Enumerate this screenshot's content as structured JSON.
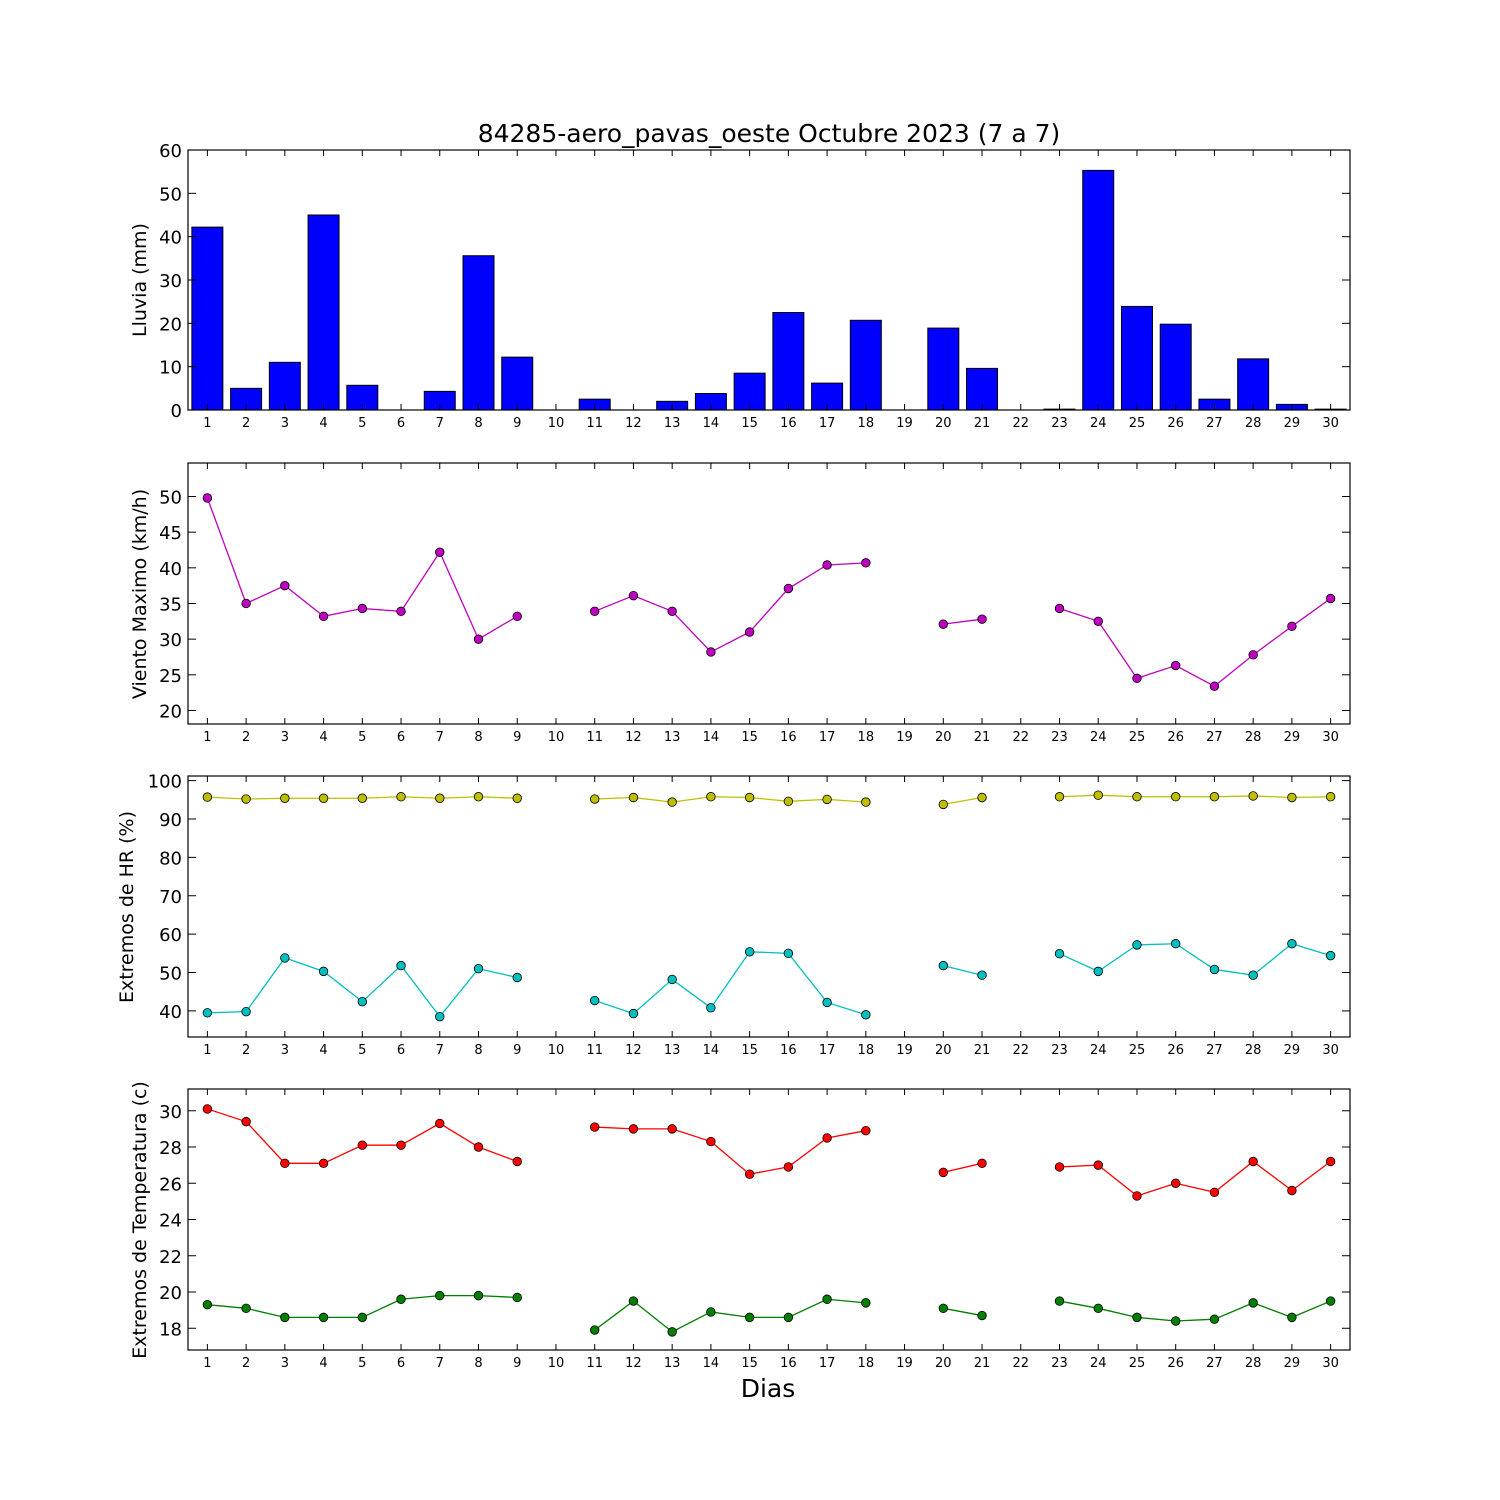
{
  "title": "84285-aero_pavas_oeste Octubre 2023  (7 a 7)",
  "xlabel": "Dias",
  "chart_data": [
    {
      "type": "bar",
      "ylabel": "Lluvia (mm)",
      "x": [
        1,
        2,
        3,
        4,
        5,
        6,
        7,
        8,
        9,
        10,
        11,
        12,
        13,
        14,
        15,
        16,
        17,
        18,
        19,
        20,
        21,
        22,
        23,
        24,
        25,
        26,
        27,
        28,
        29,
        30
      ],
      "ylim": [
        0,
        60
      ],
      "yticks": [
        0,
        10,
        20,
        30,
        40,
        50,
        60
      ],
      "series": [
        {
          "color": "#0000ff",
          "values": [
            42.2,
            5.0,
            11.0,
            45.0,
            5.7,
            0.0,
            4.3,
            35.6,
            12.2,
            0.0,
            2.5,
            0.0,
            2.0,
            3.8,
            8.5,
            22.5,
            6.2,
            20.7,
            0.0,
            18.9,
            9.6,
            0.0,
            0.2,
            55.3,
            23.9,
            19.8,
            2.5,
            11.8,
            1.3,
            0.2
          ]
        }
      ]
    },
    {
      "type": "line",
      "ylabel": "Viento Maximo (km/h)",
      "x": [
        1,
        2,
        3,
        4,
        5,
        6,
        7,
        8,
        9,
        10,
        11,
        12,
        13,
        14,
        15,
        16,
        17,
        18,
        19,
        20,
        21,
        22,
        23,
        24,
        25,
        26,
        27,
        28,
        29,
        30
      ],
      "ylim": [
        18.1,
        54.7
      ],
      "yticks": [
        20,
        25,
        30,
        35,
        40,
        45,
        50
      ],
      "series": [
        {
          "color": "#bf00bf",
          "values": [
            49.8,
            35.0,
            37.5,
            33.2,
            34.3,
            33.9,
            42.2,
            30.0,
            33.2,
            null,
            33.9,
            36.1,
            33.9,
            28.2,
            31.0,
            37.1,
            40.4,
            40.7,
            null,
            32.1,
            32.8,
            null,
            34.3,
            32.5,
            24.5,
            26.3,
            23.4,
            27.8,
            31.8,
            35.7
          ]
        }
      ]
    },
    {
      "type": "line",
      "ylabel": "Extremos de HR (%)",
      "x": [
        1,
        2,
        3,
        4,
        5,
        6,
        7,
        8,
        9,
        10,
        11,
        12,
        13,
        14,
        15,
        16,
        17,
        18,
        19,
        20,
        21,
        22,
        23,
        24,
        25,
        26,
        27,
        28,
        29,
        30
      ],
      "ylim": [
        33.2,
        101.2
      ],
      "yticks": [
        40,
        50,
        60,
        70,
        80,
        90,
        100
      ],
      "series": [
        {
          "color": "#bfbf00",
          "values": [
            95.7,
            95.2,
            95.4,
            95.4,
            95.4,
            95.8,
            95.4,
            95.8,
            95.4,
            null,
            95.2,
            95.6,
            94.4,
            95.8,
            95.6,
            94.6,
            95.1,
            94.4,
            null,
            93.8,
            95.6,
            null,
            95.8,
            96.2,
            95.8,
            95.8,
            95.8,
            96.0,
            95.6,
            95.8
          ]
        },
        {
          "color": "#00bfbf",
          "values": [
            39.5,
            39.8,
            53.8,
            50.3,
            42.4,
            51.8,
            38.5,
            51.0,
            48.7,
            null,
            42.7,
            39.3,
            48.2,
            40.8,
            55.4,
            55.0,
            42.2,
            39.0,
            null,
            51.8,
            49.3,
            null,
            54.9,
            50.3,
            57.2,
            57.5,
            50.8,
            49.3,
            57.5,
            54.4
          ]
        }
      ]
    },
    {
      "type": "line",
      "ylabel": "Extremos de Temperatura (c)",
      "x": [
        1,
        2,
        3,
        4,
        5,
        6,
        7,
        8,
        9,
        10,
        11,
        12,
        13,
        14,
        15,
        16,
        17,
        18,
        19,
        20,
        21,
        22,
        23,
        24,
        25,
        26,
        27,
        28,
        29,
        30
      ],
      "ylim": [
        16.8,
        31.2
      ],
      "yticks": [
        18,
        20,
        22,
        24,
        26,
        28,
        30
      ],
      "series": [
        {
          "color": "#ff0000",
          "values": [
            30.1,
            29.4,
            27.1,
            27.1,
            28.1,
            28.1,
            29.3,
            28.0,
            27.2,
            null,
            29.1,
            29.0,
            29.0,
            28.3,
            26.5,
            26.9,
            28.5,
            28.9,
            null,
            26.6,
            27.1,
            null,
            26.9,
            27.0,
            25.3,
            26.0,
            25.5,
            27.2,
            25.6,
            27.2
          ]
        },
        {
          "color": "#007f00",
          "values": [
            19.3,
            19.1,
            18.6,
            18.6,
            18.6,
            19.6,
            19.8,
            19.8,
            19.7,
            null,
            17.9,
            19.5,
            17.8,
            18.9,
            18.6,
            18.6,
            19.6,
            19.4,
            null,
            19.1,
            18.7,
            null,
            19.5,
            19.1,
            18.6,
            18.4,
            18.5,
            19.4,
            18.6,
            19.5
          ]
        }
      ]
    }
  ]
}
